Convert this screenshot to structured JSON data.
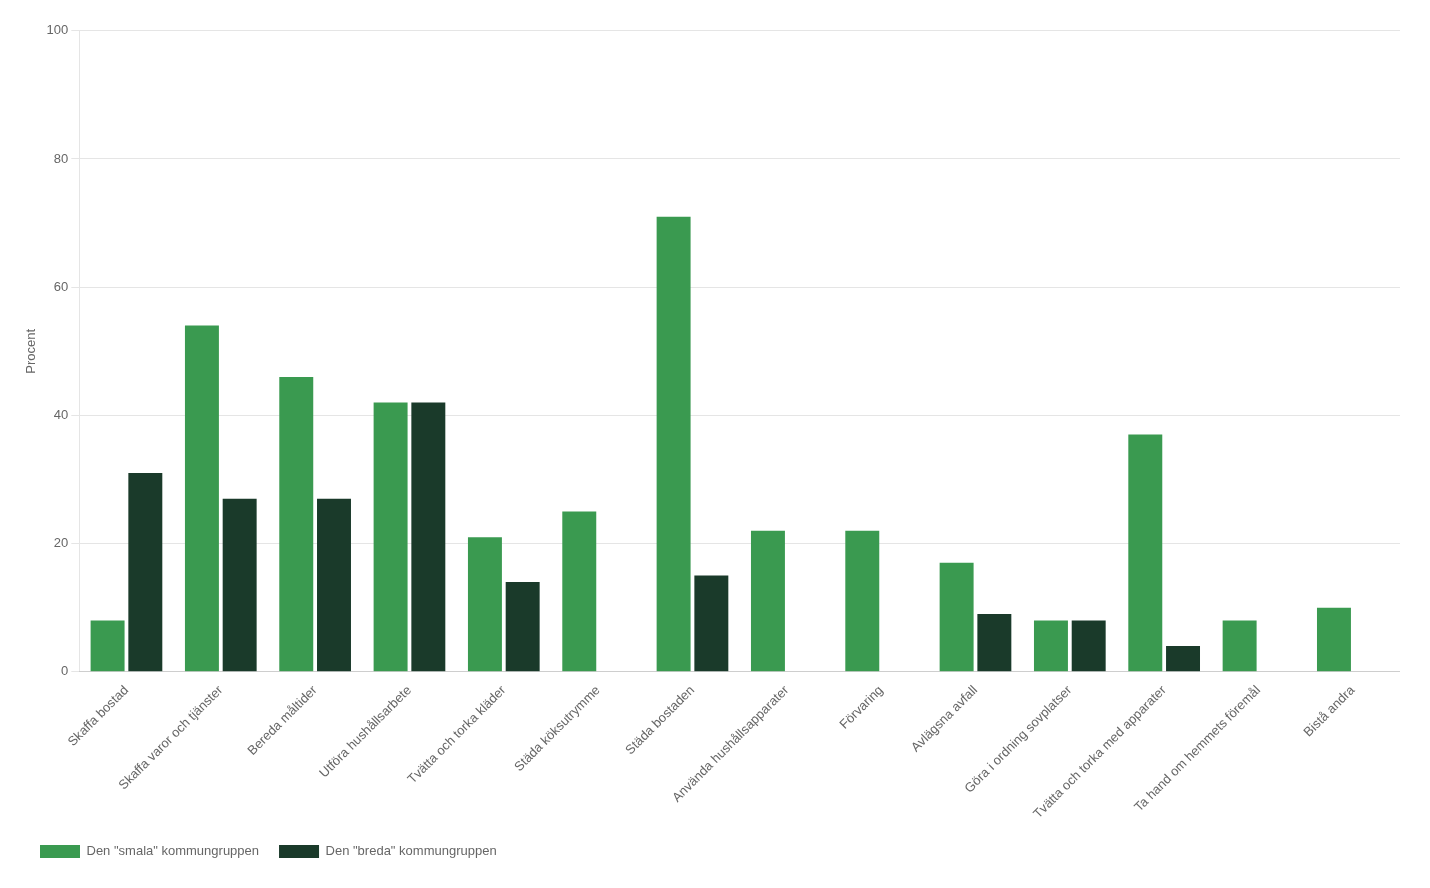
{
  "chart_data": {
    "type": "bar",
    "ylabel": "Procent",
    "categories": [
      "Skaffa bostad",
      "Skaffa varor och tjänster",
      "Bereda måltider",
      "Utföra hushållsarbete",
      "Tvätta och torka kläder",
      "Städa köksutrymme",
      "Städa bostaden",
      "Använda hushållsapparater",
      "Förvaring",
      "Avlägsna avfall",
      "Göra i ordning sovplatser",
      "Tvätta och torka med apparater",
      "Ta hand om hemmets föremål",
      "Bistå andra"
    ],
    "series": [
      {
        "name": "Den \"smala\" kommungruppen",
        "color": "#3a9a50",
        "values": [
          8,
          54,
          46,
          42,
          21,
          25,
          71,
          22,
          22,
          17,
          8,
          37,
          8,
          10
        ]
      },
      {
        "name": "Den \"breda\" kommungruppen",
        "color": "#1a3a2a",
        "values": [
          31,
          27,
          27,
          42,
          14,
          0,
          15,
          0,
          0,
          9,
          8,
          4,
          0,
          0
        ]
      }
    ],
    "ylim": [
      0,
      100
    ],
    "yticks": [
      0,
      20,
      40,
      60,
      80,
      100
    ],
    "grid": true,
    "legend": "bottom"
  }
}
